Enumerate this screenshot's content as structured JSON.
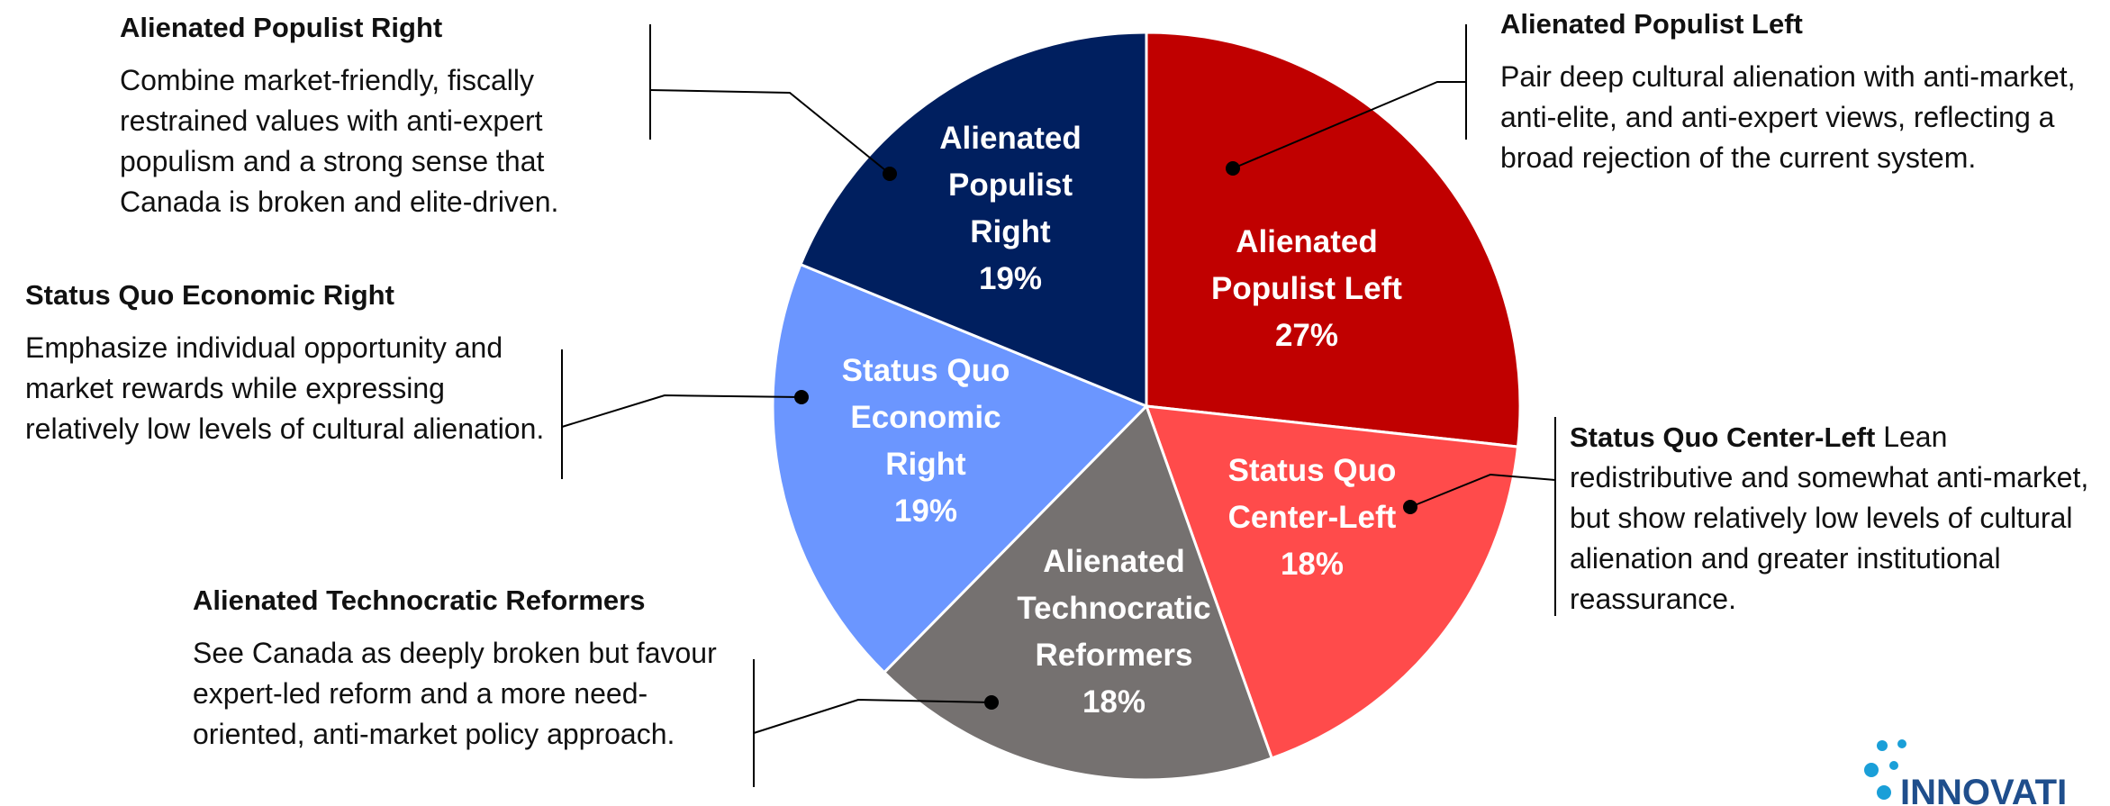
{
  "chart_data": {
    "type": "pie",
    "categories": [
      "Alienated Populist Left",
      "Status Quo Center-Left",
      "Alienated Technocratic Reformers",
      "Status Quo Economic Right",
      "Alienated Populist Right"
    ],
    "values": [
      27,
      18,
      18,
      19,
      19
    ],
    "value_labels": [
      "27%",
      "18%",
      "18%",
      "19%",
      "19%"
    ],
    "colors": [
      "#c00000",
      "#ff4b4b",
      "#757170",
      "#6b96ff",
      "#001f5f"
    ],
    "annotations": [
      {
        "title": "Alienated Populist Left",
        "text": "Pair deep cultural alienation with anti-market, anti-elite, and anti-expert views, reflecting a broad rejection of the current system."
      },
      {
        "title": "Status Quo Center-Left",
        "text": "Lean redistributive and somewhat anti-market, but show relatively low levels of cultural alienation and greater institutional reassurance."
      },
      {
        "title": "Alienated Technocratic Reformers",
        "text": "See Canada as deeply broken but favour expert-led reform and a more need-oriented, anti-market policy approach."
      },
      {
        "title": "Status Quo Economic Right",
        "text": "Emphasize individual opportunity and market rewards while expressing relatively low levels of cultural alienation."
      },
      {
        "title": "Alienated Populist Right",
        "text": "Combine market-friendly, fiscally restrained values with anti-expert populism and a strong sense that Canada is broken and elite-driven."
      }
    ],
    "logo": "INNOVATI"
  }
}
